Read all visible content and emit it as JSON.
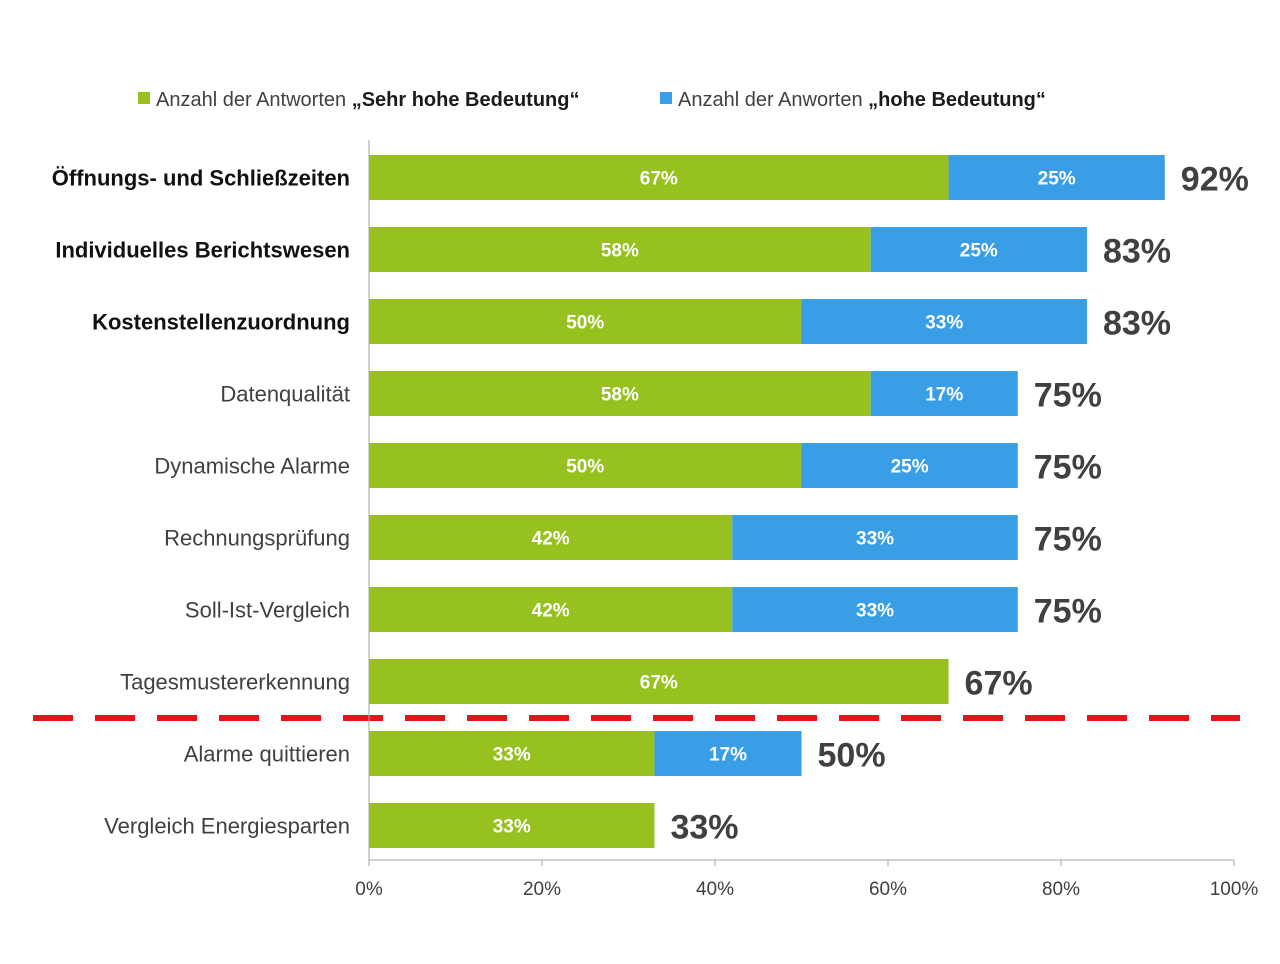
{
  "chart_data": {
    "type": "bar",
    "orientation": "horizontal",
    "stacked": true,
    "categories": [
      "Öffnungs- und Schließzeiten",
      "Individuelles Berichtswesen",
      "Kostenstellenzuordnung",
      "Datenqualität",
      "Dynamische Alarme",
      "Rechnungsprüfung",
      "Soll-Ist-Vergleich",
      "Tagesmustererkennung",
      "Alarme quittieren",
      "Vergleich Energiesparten"
    ],
    "bold_categories": [
      true,
      true,
      true,
      false,
      false,
      false,
      false,
      false,
      false,
      false
    ],
    "series": [
      {
        "name": "Anzahl der Antworten „Sehr hohe Bedeutung“",
        "legend_prefix": "Anzahl der Antworten",
        "legend_emphasis": "„Sehr hohe Bedeutung“",
        "color": "#96c11f",
        "values": [
          67,
          58,
          50,
          58,
          50,
          42,
          42,
          67,
          33,
          33
        ],
        "labels": [
          "67%",
          "58%",
          "50%",
          "58%",
          "50%",
          "42%",
          "42%",
          "67%",
          "33%",
          "33%"
        ]
      },
      {
        "name": "Anzahl der Anworten „hohe Bedeutung“",
        "legend_prefix": "Anzahl der Anworten",
        "legend_emphasis": "„hohe Bedeutung“",
        "color": "#3a9ee6",
        "values": [
          25,
          25,
          33,
          17,
          25,
          33,
          33,
          0,
          17,
          0
        ],
        "labels": [
          "25%",
          "25%",
          "33%",
          "17%",
          "25%",
          "33%",
          "33%",
          "",
          "17%",
          ""
        ]
      }
    ],
    "totals": [
      "92%",
      "83%",
      "83%",
      "75%",
      "75%",
      "75%",
      "75%",
      "67%",
      "50%",
      "33%"
    ],
    "total_values": [
      92,
      83,
      83,
      75,
      75,
      75,
      75,
      67,
      50,
      33
    ],
    "xlim": [
      0,
      100
    ],
    "xticks": [
      "0%",
      "20%",
      "40%",
      "60%",
      "80%",
      "100%"
    ],
    "xtick_values": [
      0,
      20,
      40,
      60,
      80,
      100
    ],
    "grid": false,
    "legend_position": "top",
    "cutoff_after_category": "Tagesmustererkennung",
    "cutoff_line_color": "#e8141c"
  }
}
